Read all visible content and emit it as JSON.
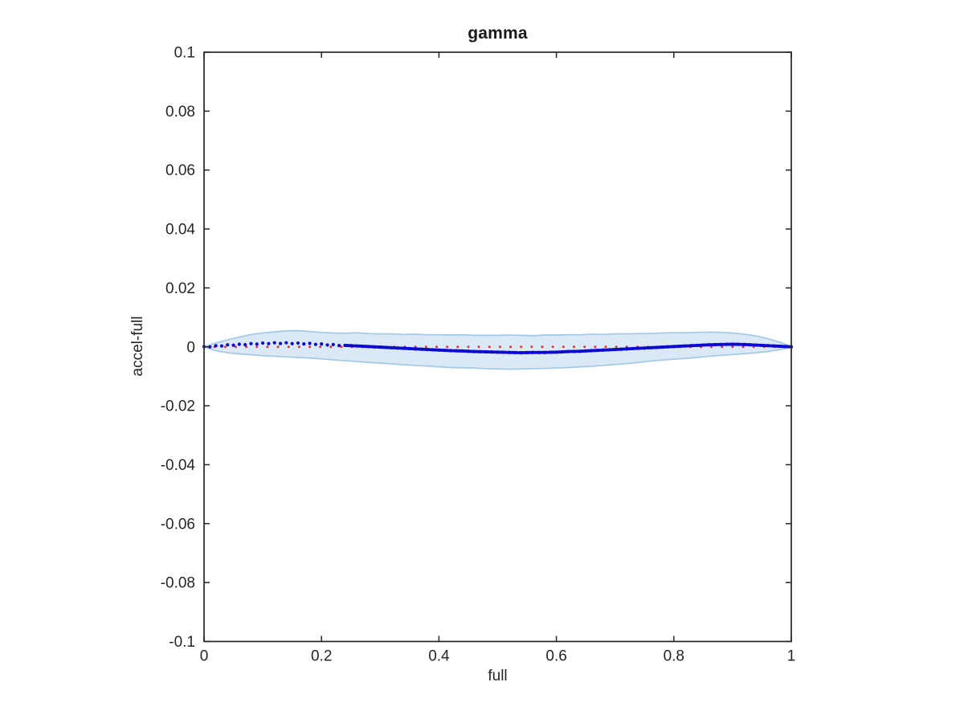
{
  "figure": {
    "background": "#ffffff"
  },
  "chart_data": {
    "type": "line",
    "title": "gamma",
    "xlabel": "full",
    "ylabel": "accel-full",
    "xlim": [
      0,
      1
    ],
    "ylim": [
      -0.1,
      0.1
    ],
    "grid": false,
    "legend": false,
    "box": true,
    "axis_color": "#262626",
    "xticks": [
      0,
      0.2,
      0.4,
      0.6,
      0.8,
      1
    ],
    "xtick_labels": [
      "0",
      "0.2",
      "0.4",
      "0.6",
      "0.8",
      "1"
    ],
    "yticks": [
      0.1,
      0.08,
      0.06,
      0.04,
      0.02,
      0,
      -0.02,
      -0.04,
      -0.06,
      -0.08,
      -0.1
    ],
    "ytick_labels": [
      "0.1",
      "0.08",
      "0.06",
      "0.04",
      "0.02",
      "0",
      "-0.02",
      "-0.04",
      "-0.06",
      "-0.08",
      "-0.1"
    ],
    "band": {
      "name": "confidence-band",
      "fill": "#dbe8f6",
      "edge": "#a6cbe6",
      "x": [
        0,
        0.02,
        0.04,
        0.06,
        0.08,
        0.1,
        0.12,
        0.14,
        0.16,
        0.18,
        0.2,
        0.22,
        0.24,
        0.26,
        0.28,
        0.3,
        0.32,
        0.34,
        0.36,
        0.38,
        0.4,
        0.42,
        0.44,
        0.46,
        0.48,
        0.5,
        0.52,
        0.54,
        0.56,
        0.58,
        0.6,
        0.62,
        0.64,
        0.66,
        0.68,
        0.7,
        0.72,
        0.74,
        0.76,
        0.78,
        0.8,
        0.82,
        0.84,
        0.86,
        0.88,
        0.9,
        0.92,
        0.94,
        0.96,
        0.98,
        1
      ],
      "upper": [
        0.0,
        0.0013,
        0.0024,
        0.0033,
        0.0042,
        0.0047,
        0.0051,
        0.0054,
        0.0055,
        0.0052,
        0.0049,
        0.0047,
        0.0046,
        0.0048,
        0.0045,
        0.0044,
        0.0044,
        0.0042,
        0.0043,
        0.0041,
        0.0041,
        0.004,
        0.0041,
        0.0039,
        0.0039,
        0.0039,
        0.004,
        0.0039,
        0.0038,
        0.004,
        0.004,
        0.0041,
        0.0041,
        0.0043,
        0.0042,
        0.0044,
        0.0044,
        0.0045,
        0.0045,
        0.0047,
        0.0048,
        0.0048,
        0.0049,
        0.005,
        0.0049,
        0.0047,
        0.0043,
        0.0037,
        0.0028,
        0.0016,
        0.0001
      ],
      "lower": [
        0.0,
        -0.0013,
        -0.002,
        -0.0024,
        -0.0027,
        -0.003,
        -0.0032,
        -0.0034,
        -0.0036,
        -0.0038,
        -0.0041,
        -0.0044,
        -0.0047,
        -0.005,
        -0.0053,
        -0.0055,
        -0.0058,
        -0.0061,
        -0.0063,
        -0.0065,
        -0.0068,
        -0.007,
        -0.0071,
        -0.0072,
        -0.0074,
        -0.0075,
        -0.0076,
        -0.0075,
        -0.0074,
        -0.0073,
        -0.0072,
        -0.007,
        -0.0068,
        -0.0066,
        -0.0063,
        -0.006,
        -0.0057,
        -0.0053,
        -0.0048,
        -0.0045,
        -0.0042,
        -0.0039,
        -0.0036,
        -0.0032,
        -0.0029,
        -0.0026,
        -0.0023,
        -0.002,
        -0.0016,
        -0.001,
        -0.0001
      ]
    },
    "series": [
      {
        "name": "gamma-estimate",
        "style": "dotted-with-markers",
        "color": "#0b0bd0",
        "x": [
          0,
          0.02,
          0.04,
          0.06,
          0.08,
          0.1,
          0.12,
          0.14,
          0.16,
          0.18,
          0.2,
          0.22,
          0.24,
          0.26,
          0.28,
          0.3,
          0.32,
          0.34,
          0.36,
          0.38,
          0.4,
          0.42,
          0.44,
          0.46,
          0.48,
          0.5,
          0.52,
          0.54,
          0.56,
          0.58,
          0.6,
          0.62,
          0.64,
          0.66,
          0.68,
          0.7,
          0.72,
          0.74,
          0.76,
          0.78,
          0.8,
          0.82,
          0.84,
          0.86,
          0.88,
          0.9,
          0.92,
          0.94,
          0.96,
          0.98,
          1
        ],
        "y": [
          0.0,
          0.0003,
          0.0006,
          0.0008,
          0.001,
          0.0012,
          0.0013,
          0.0013,
          0.0012,
          0.0011,
          0.0009,
          0.0007,
          0.0005,
          0.0003,
          0.0001,
          -0.0001,
          -0.0003,
          -0.0005,
          -0.0007,
          -0.0009,
          -0.0011,
          -0.0013,
          -0.0014,
          -0.0016,
          -0.0017,
          -0.0018,
          -0.0019,
          -0.002,
          -0.0019,
          -0.0019,
          -0.0018,
          -0.0016,
          -0.0015,
          -0.0013,
          -0.0011,
          -0.0009,
          -0.0007,
          -0.0005,
          -0.0003,
          -0.0001,
          0.0001,
          0.0003,
          0.0005,
          0.0007,
          0.0008,
          0.0009,
          0.0008,
          0.0006,
          0.0004,
          0.0002,
          0.0
        ]
      },
      {
        "name": "zero-reference",
        "style": "dotted",
        "color": "#e23333",
        "y_const": 0,
        "x_start": 0,
        "x_end": 1
      }
    ]
  }
}
